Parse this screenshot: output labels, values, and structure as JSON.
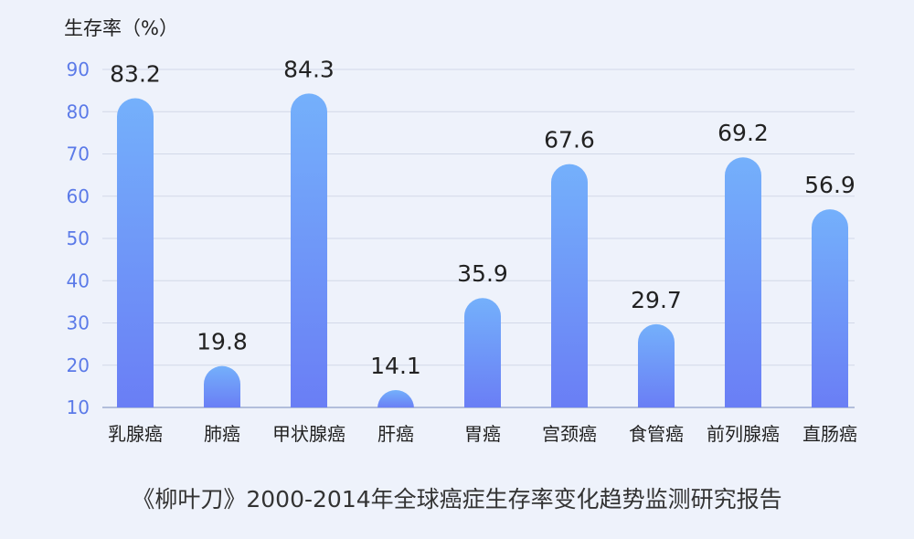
{
  "chart_data": {
    "type": "bar",
    "ylabel": "生存率（%）",
    "categories": [
      "乳腺癌",
      "肺癌",
      "甲状腺癌",
      "肝癌",
      "胃癌",
      "宫颈癌",
      "食管癌",
      "前列腺癌",
      "直肠癌"
    ],
    "values": [
      83.2,
      19.8,
      84.3,
      14.1,
      35.9,
      67.6,
      29.7,
      69.2,
      56.9
    ],
    "value_labels": [
      "83.2",
      "19.8",
      "84.3",
      "14.1",
      "35.9",
      "67.6",
      "29.7",
      "69.2",
      "56.9"
    ],
    "yticks": [
      10,
      20,
      30,
      40,
      50,
      60,
      70,
      80,
      90
    ],
    "ylim": [
      10,
      90
    ],
    "grid": true,
    "bar_color_top": "#74b0fb",
    "bar_color_bottom": "#6a7ef5",
    "caption": "《柳叶刀》2000-2014年全球癌症生存率变化趋势监测研究报告"
  }
}
